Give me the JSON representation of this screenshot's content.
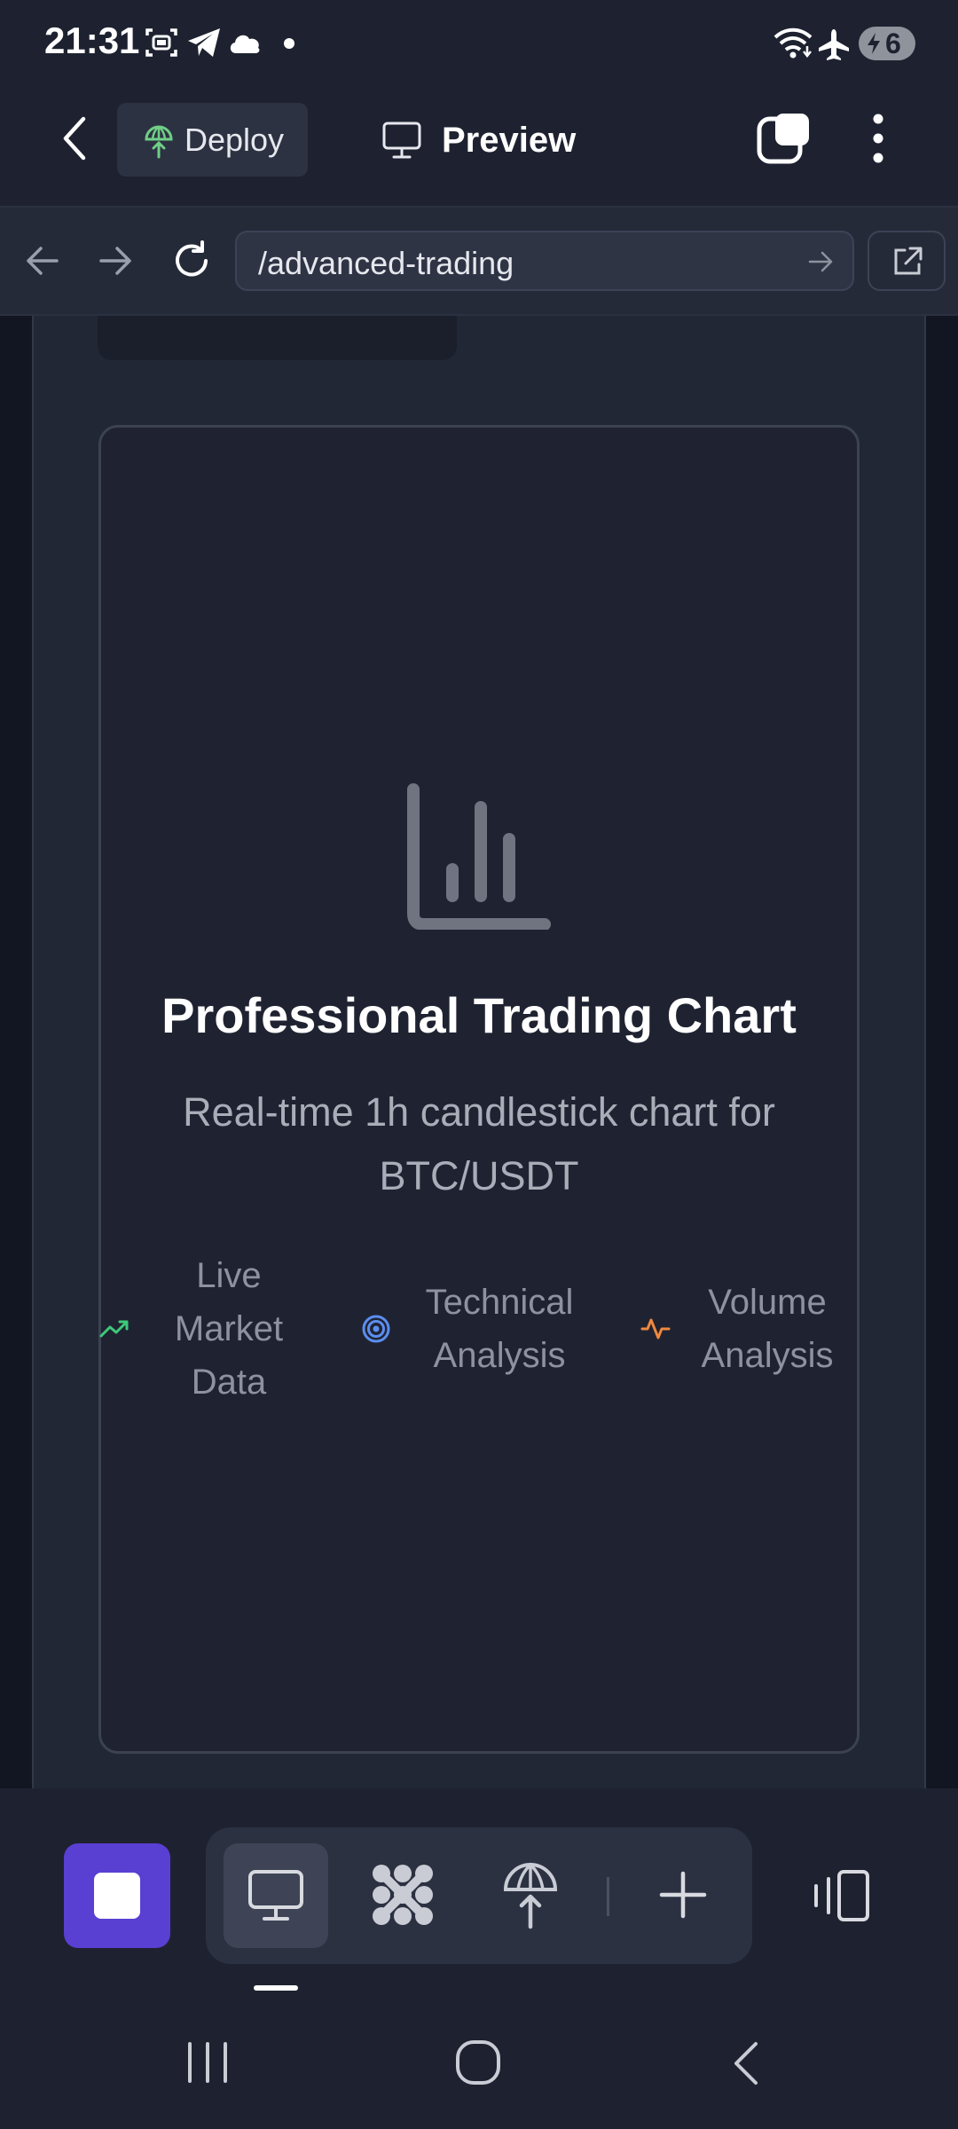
{
  "status_bar": {
    "time": "21:31",
    "battery": "6",
    "icons": [
      "screenshot-icon",
      "telegram-icon",
      "cloud-icon",
      "dot-icon",
      "wifi-icon",
      "airplane-icon",
      "battery-icon"
    ]
  },
  "app_bar": {
    "deploy_label": "Deploy",
    "preview_label": "Preview",
    "deploy_icon_color": "#6fcf86"
  },
  "url_bar": {
    "url": "/advanced-trading"
  },
  "card": {
    "title": "Professional Trading Chart",
    "subtitle": "Real-time 1h candlestick chart for BTC/USDT",
    "features": [
      {
        "label_lines": [
          "Live",
          "Market",
          "Data"
        ],
        "icon": "trending-up-icon",
        "color": "#3ec97a"
      },
      {
        "label_lines": [
          "Technical",
          "Analysis"
        ],
        "icon": "target-icon",
        "color": "#5b8ef0"
      },
      {
        "label_lines": [
          "Volume",
          "Analysis"
        ],
        "icon": "activity-icon",
        "color": "#f0883e"
      }
    ]
  },
  "colors": {
    "accent": "#5a3fd3",
    "background": "#1e2230"
  }
}
